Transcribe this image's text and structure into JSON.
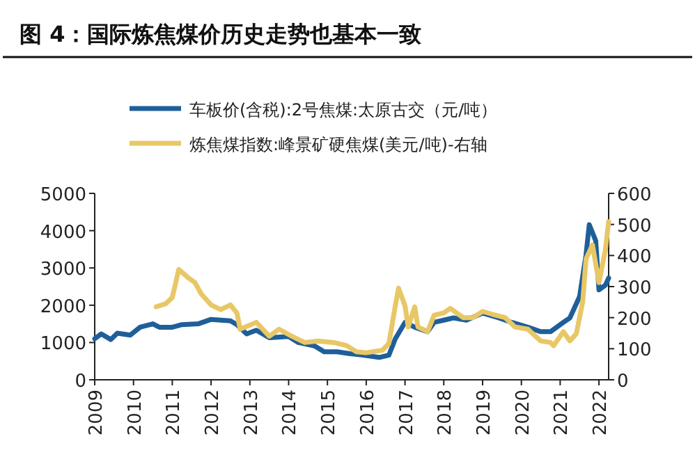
{
  "chart_data": {
    "type": "line",
    "title": "图 4：国际炼焦煤价历史走势也基本一致",
    "legend": "top",
    "xlim": [
      "2009-01",
      "2022-04"
    ],
    "xticks": [
      "2009",
      "2010",
      "2011",
      "2012",
      "2013",
      "2014",
      "2015",
      "2016",
      "2017",
      "2018",
      "2019",
      "2020",
      "2021",
      "2022"
    ],
    "ylim": [
      0,
      5000
    ],
    "yticks": [
      0,
      1000,
      2000,
      3000,
      4000,
      5000
    ],
    "y2lim": [
      0,
      600
    ],
    "y2ticks": [
      0,
      100,
      200,
      300,
      400,
      500,
      600
    ],
    "series": [
      {
        "name": "车板价(含税):2号焦煤:太原古交（元/吨）",
        "color": "#1f5f99",
        "x": [
          "2009-01",
          "2009-03",
          "2009-06",
          "2009-08",
          "2009-12",
          "2010-03",
          "2010-07",
          "2010-09",
          "2011-01",
          "2011-04",
          "2011-09",
          "2012-01",
          "2012-07",
          "2012-09",
          "2012-12",
          "2013-03",
          "2013-07",
          "2014-01",
          "2014-04",
          "2014-09",
          "2014-12",
          "2015-04",
          "2015-08",
          "2015-12",
          "2016-05",
          "2016-08",
          "2016-10",
          "2017-01",
          "2017-04",
          "2017-08",
          "2017-10",
          "2018-01",
          "2018-04",
          "2018-08",
          "2019-01",
          "2019-06",
          "2019-10",
          "2020-03",
          "2020-07",
          "2020-10",
          "2021-02",
          "2021-04",
          "2021-07",
          "2021-09",
          "2021-10",
          "2021-12",
          "2022-01",
          "2022-03",
          "2022-04"
        ],
        "values": [
          1100,
          1230,
          1080,
          1250,
          1200,
          1410,
          1500,
          1410,
          1410,
          1480,
          1500,
          1620,
          1580,
          1480,
          1230,
          1330,
          1130,
          1160,
          1000,
          910,
          750,
          750,
          700,
          660,
          600,
          660,
          1100,
          1540,
          1410,
          1290,
          1540,
          1600,
          1660,
          1600,
          1790,
          1660,
          1540,
          1410,
          1290,
          1290,
          1540,
          1660,
          2230,
          3350,
          4160,
          3730,
          2410,
          2540,
          2730
        ]
      },
      {
        "name": "炼焦煤指数:峰景矿硬焦煤(美元/吨)-右轴",
        "color": "#e8c766",
        "axis": "y2",
        "x": [
          "2010-08",
          "2010-11",
          "2011-01",
          "2011-03",
          "2011-06",
          "2011-08",
          "2011-10",
          "2012-01",
          "2012-04",
          "2012-07",
          "2012-09",
          "2012-10",
          "2013-03",
          "2013-07",
          "2013-10",
          "2014-02",
          "2014-06",
          "2014-10",
          "2015-03",
          "2015-07",
          "2015-10",
          "2016-01",
          "2016-06",
          "2016-08",
          "2016-10",
          "2016-11",
          "2017-01",
          "2017-02",
          "2017-04",
          "2017-05",
          "2017-08",
          "2017-10",
          "2018-01",
          "2018-03",
          "2018-07",
          "2018-10",
          "2019-01",
          "2019-04",
          "2019-08",
          "2019-11",
          "2020-03",
          "2020-07",
          "2020-10",
          "2020-11",
          "2021-02",
          "2021-04",
          "2021-06",
          "2021-08",
          "2021-09",
          "2021-11",
          "2022-01",
          "2022-03",
          "2022-04"
        ],
        "values": [
          235,
          245,
          265,
          355,
          328,
          313,
          276,
          241,
          226,
          241,
          215,
          163,
          185,
          140,
          163,
          140,
          120,
          125,
          120,
          110,
          90,
          87,
          95,
          117,
          238,
          295,
          238,
          170,
          235,
          170,
          155,
          208,
          215,
          230,
          200,
          200,
          220,
          211,
          200,
          170,
          163,
          125,
          120,
          110,
          155,
          125,
          148,
          253,
          389,
          434,
          313,
          419,
          509
        ]
      }
    ]
  }
}
